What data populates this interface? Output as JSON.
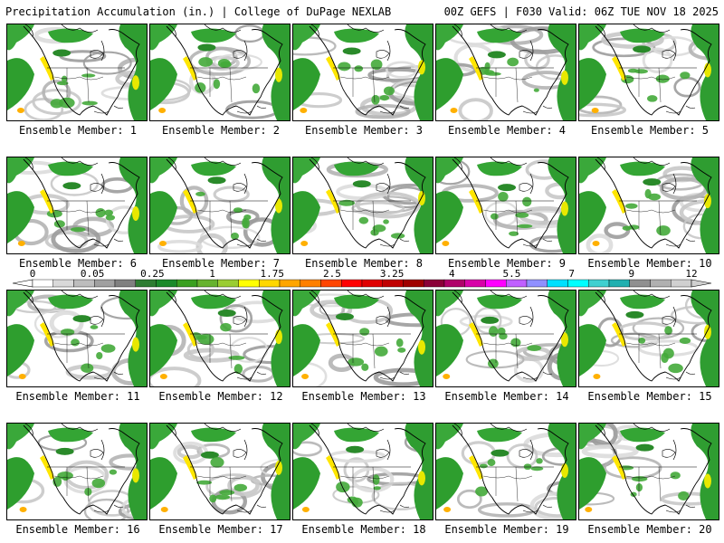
{
  "header": {
    "left_title": "Precipitation Accumulation (in.) | College of DuPage NEXLAB",
    "right_title": "00Z GEFS | F030 Valid: 06Z TUE NOV 18 2025"
  },
  "members": [
    "Ensemble Member: 1",
    "Ensemble Member: 2",
    "Ensemble Member: 3",
    "Ensemble Member: 4",
    "Ensemble Member: 5",
    "Ensemble Member: 6",
    "Ensemble Member: 7",
    "Ensemble Member: 8",
    "Ensemble Member: 9",
    "Ensemble Member: 10",
    "Ensemble Member: 11",
    "Ensemble Member: 12",
    "Ensemble Member: 13",
    "Ensemble Member: 14",
    "Ensemble Member: 15",
    "Ensemble Member: 16",
    "Ensemble Member: 17",
    "Ensemble Member: 18",
    "Ensemble Member: 19",
    "Ensemble Member: 20"
  ],
  "map_icon": "north-america-precip-map",
  "scale": {
    "tick_labels": [
      "0",
      "0.05",
      "0.25",
      "1",
      "1.75",
      "2.5",
      "3.25",
      "4",
      "5.5",
      "7",
      "9",
      "12"
    ],
    "colors": [
      "#ffffff",
      "#d9d9d9",
      "#bdbdbd",
      "#a0a0a0",
      "#808080",
      "#2e7d32",
      "#1b8a2a",
      "#3aa020",
      "#66b32e",
      "#9acd32",
      "#ffff00",
      "#ffd700",
      "#ffa500",
      "#ff7f00",
      "#ff4500",
      "#ff0000",
      "#e00000",
      "#c00000",
      "#a00000",
      "#8b0038",
      "#b0006a",
      "#d800a8",
      "#ff00ff",
      "#c060ff",
      "#9090ff",
      "#00e0ff",
      "#00ffff",
      "#40d0d0",
      "#20b0b0",
      "#909090",
      "#b0b0b0",
      "#d0d0d0"
    ]
  }
}
